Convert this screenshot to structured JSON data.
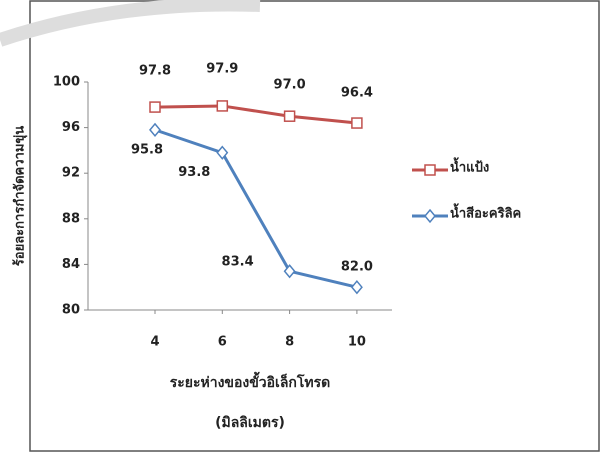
{
  "chart_data": {
    "type": "line",
    "y_label": "ร้อยละการกำจัดความขุ่น",
    "x_label": "ระยะห่างของขั้วอิเล็กโทรด",
    "x_unit": "(มิลลิเมตร)",
    "categories": [
      "4",
      "6",
      "8",
      "10"
    ],
    "series": [
      {
        "name": "น้ำแป้ง",
        "color": "#c0504d",
        "marker": "square",
        "values": [
          97.8,
          97.9,
          97.0,
          96.4
        ],
        "value_labels": [
          "97.8",
          "97.9",
          "97.0",
          "96.4"
        ]
      },
      {
        "name": "น้ำสีอะคริลิค",
        "color": "#4f81bd",
        "marker": "diamond",
        "values": [
          95.8,
          93.8,
          83.4,
          82.0
        ],
        "value_labels": [
          "95.8",
          "93.8",
          "83.4",
          "82.0"
        ]
      }
    ],
    "ylim": [
      80,
      100
    ],
    "yticks": [
      80,
      84,
      88,
      92,
      96,
      100
    ],
    "legend": "right"
  }
}
